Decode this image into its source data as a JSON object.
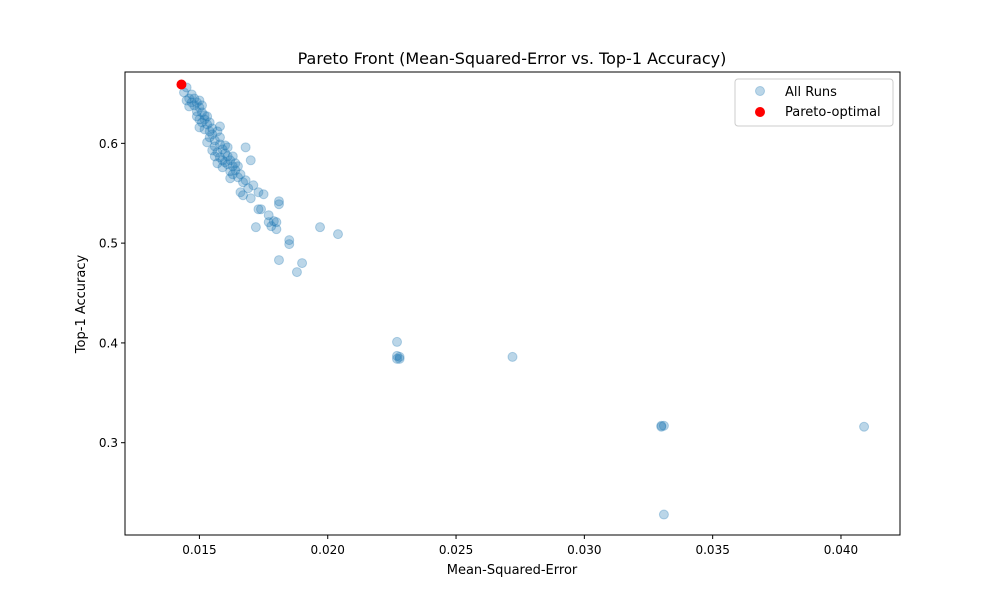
{
  "chart_data": {
    "type": "scatter",
    "title": "Pareto Front (Mean-Squared-Error vs. Top-1 Accuracy)",
    "xlabel": "Mean-Squared-Error",
    "ylabel": "Top-1 Accuracy",
    "xlim": [
      0.0121,
      0.0423
    ],
    "ylim": [
      0.2075,
      0.6715
    ],
    "xticks": [
      "0.015",
      "0.020",
      "0.025",
      "0.030",
      "0.035",
      "0.040"
    ],
    "xtick_values": [
      0.015,
      0.02,
      0.025,
      0.03,
      0.035,
      0.04
    ],
    "yticks": [
      "0.3",
      "0.4",
      "0.5",
      "0.6"
    ],
    "ytick_values": [
      0.3,
      0.4,
      0.5,
      0.6
    ],
    "grid": false,
    "legend_position": "top-right",
    "legend": [
      "All Runs",
      "Pareto-optimal"
    ],
    "colors": {
      "all_runs": "#1f77b4",
      "pareto": "#ff0000"
    },
    "series": [
      {
        "name": "All Runs",
        "points": [
          [
            0.0144,
            0.651
          ],
          [
            0.0145,
            0.656
          ],
          [
            0.0145,
            0.643
          ],
          [
            0.0146,
            0.637
          ],
          [
            0.0146,
            0.645
          ],
          [
            0.0147,
            0.649
          ],
          [
            0.0147,
            0.641
          ],
          [
            0.0148,
            0.645
          ],
          [
            0.0148,
            0.638
          ],
          [
            0.0149,
            0.632
          ],
          [
            0.0149,
            0.641
          ],
          [
            0.0149,
            0.627
          ],
          [
            0.015,
            0.643
          ],
          [
            0.015,
            0.636
          ],
          [
            0.015,
            0.624
          ],
          [
            0.015,
            0.616
          ],
          [
            0.0151,
            0.638
          ],
          [
            0.0151,
            0.631
          ],
          [
            0.0151,
            0.621
          ],
          [
            0.0152,
            0.628
          ],
          [
            0.0152,
            0.614
          ],
          [
            0.0152,
            0.624
          ],
          [
            0.0153,
            0.627
          ],
          [
            0.0153,
            0.619
          ],
          [
            0.0153,
            0.601
          ],
          [
            0.0154,
            0.612
          ],
          [
            0.0154,
            0.606
          ],
          [
            0.0154,
            0.621
          ],
          [
            0.0155,
            0.593
          ],
          [
            0.0155,
            0.615
          ],
          [
            0.0155,
            0.609
          ],
          [
            0.0156,
            0.597
          ],
          [
            0.0156,
            0.587
          ],
          [
            0.0156,
            0.603
          ],
          [
            0.0157,
            0.591
          ],
          [
            0.0157,
            0.58
          ],
          [
            0.0157,
            0.612
          ],
          [
            0.0158,
            0.599
          ],
          [
            0.0158,
            0.586
          ],
          [
            0.0158,
            0.617
          ],
          [
            0.0158,
            0.606
          ],
          [
            0.0159,
            0.594
          ],
          [
            0.0159,
            0.583
          ],
          [
            0.0159,
            0.576
          ],
          [
            0.016,
            0.598
          ],
          [
            0.016,
            0.59
          ],
          [
            0.016,
            0.581
          ],
          [
            0.0161,
            0.587
          ],
          [
            0.0161,
            0.579
          ],
          [
            0.0161,
            0.596
          ],
          [
            0.0162,
            0.572
          ],
          [
            0.0162,
            0.565
          ],
          [
            0.0162,
            0.583
          ],
          [
            0.0163,
            0.577
          ],
          [
            0.0163,
            0.569
          ],
          [
            0.0163,
            0.587
          ],
          [
            0.0164,
            0.573
          ],
          [
            0.0164,
            0.58
          ],
          [
            0.0165,
            0.566
          ],
          [
            0.0165,
            0.577
          ],
          [
            0.0166,
            0.551
          ],
          [
            0.0166,
            0.569
          ],
          [
            0.0167,
            0.561
          ],
          [
            0.0167,
            0.548
          ],
          [
            0.0168,
            0.563
          ],
          [
            0.0168,
            0.596
          ],
          [
            0.0169,
            0.555
          ],
          [
            0.017,
            0.545
          ],
          [
            0.017,
            0.583
          ],
          [
            0.0171,
            0.558
          ],
          [
            0.0172,
            0.516
          ],
          [
            0.0173,
            0.534
          ],
          [
            0.0173,
            0.551
          ],
          [
            0.0174,
            0.534
          ],
          [
            0.0175,
            0.549
          ],
          [
            0.0177,
            0.521
          ],
          [
            0.0177,
            0.528
          ],
          [
            0.0178,
            0.517
          ],
          [
            0.0179,
            0.522
          ],
          [
            0.018,
            0.514
          ],
          [
            0.018,
            0.521
          ],
          [
            0.0181,
            0.539
          ],
          [
            0.0181,
            0.542
          ],
          [
            0.0181,
            0.483
          ],
          [
            0.0185,
            0.499
          ],
          [
            0.0185,
            0.503
          ],
          [
            0.0188,
            0.471
          ],
          [
            0.019,
            0.48
          ],
          [
            0.0197,
            0.516
          ],
          [
            0.0204,
            0.509
          ],
          [
            0.0227,
            0.384
          ],
          [
            0.0227,
            0.387
          ],
          [
            0.0227,
            0.401
          ],
          [
            0.0228,
            0.386
          ],
          [
            0.0228,
            0.384
          ],
          [
            0.0272,
            0.386
          ],
          [
            0.033,
            0.317
          ],
          [
            0.033,
            0.316
          ],
          [
            0.0331,
            0.317
          ],
          [
            0.0331,
            0.228
          ],
          [
            0.0409,
            0.316
          ]
        ]
      },
      {
        "name": "Pareto-optimal",
        "points": [
          [
            0.0143,
            0.659
          ]
        ]
      }
    ]
  }
}
